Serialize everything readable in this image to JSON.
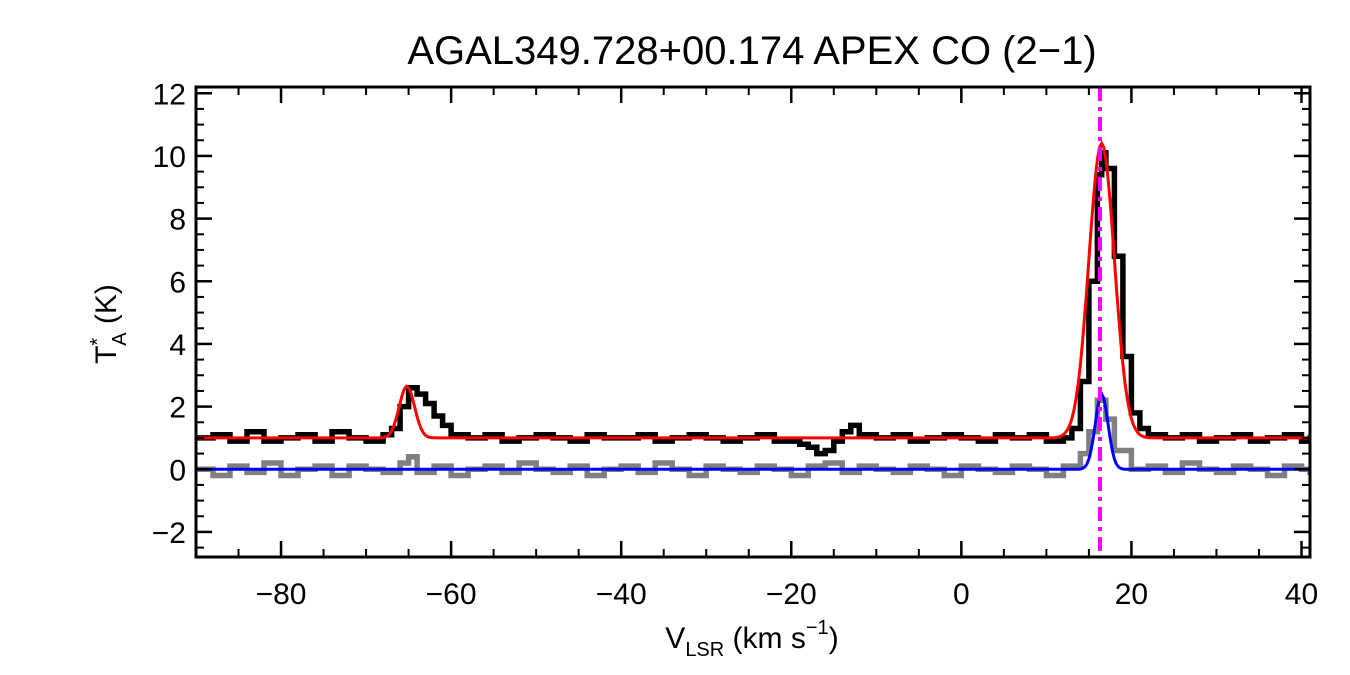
{
  "chart_data": {
    "type": "line",
    "title": "AGAL349.728+00.174  APEX CO (2−1)",
    "xlabel": {
      "main": "V",
      "sub": "LSR",
      "rest": " (km s",
      "sup": "−1",
      "close": ")"
    },
    "ylabel": {
      "main": "T",
      "sup": "*",
      "sub": "A",
      "rest": " (K)"
    },
    "xlim": [
      -90,
      41
    ],
    "ylim": [
      -2.8,
      12.2
    ],
    "xticks": [
      -80,
      -60,
      -40,
      -20,
      0,
      20,
      40
    ],
    "xtick_labels": [
      "−80",
      "−60",
      "−40",
      "−20",
      "0",
      "20",
      "40"
    ],
    "yticks": [
      -2,
      0,
      2,
      4,
      6,
      8,
      10,
      12
    ],
    "ytick_labels": [
      "−2",
      "0",
      "2",
      "4",
      "6",
      "8",
      "10",
      "12"
    ],
    "grid": false,
    "vline": {
      "x": 16.3,
      "color": "#ff00ff",
      "style": "dash-dot"
    },
    "colors": {
      "spectrum": "#000000",
      "residual": "#808080",
      "fit": "#ff0000",
      "fit_component": "#0000ff"
    },
    "series": [
      {
        "role": "spectrum",
        "x": [
          -90,
          -88,
          -86,
          -84,
          -82,
          -80,
          -78,
          -76,
          -74,
          -72,
          -70,
          -68,
          -67,
          -66,
          -65,
          -64,
          -63,
          -62,
          -61,
          -60,
          -58,
          -56,
          -54,
          -52,
          -50,
          -48,
          -46,
          -44,
          -42,
          -40,
          -38,
          -36,
          -34,
          -32,
          -30,
          -28,
          -26,
          -24,
          -22,
          -20,
          -19,
          -18,
          -17,
          -16,
          -15,
          -14,
          -13,
          -12,
          -10,
          -8,
          -6,
          -4,
          -2,
          0,
          2,
          4,
          6,
          8,
          10,
          12,
          13,
          14,
          15,
          16,
          16.5,
          17,
          18,
          19,
          20,
          21,
          22,
          24,
          26,
          28,
          30,
          32,
          34,
          36,
          38,
          40,
          41
        ],
        "y": [
          1.0,
          1.1,
          0.9,
          1.2,
          0.9,
          1.0,
          1.1,
          0.9,
          1.2,
          1.0,
          0.9,
          1.1,
          1.3,
          2.0,
          2.6,
          2.4,
          2.1,
          1.7,
          1.4,
          1.1,
          1.0,
          1.1,
          0.9,
          1.0,
          1.1,
          1.0,
          0.9,
          1.1,
          1.0,
          1.0,
          1.1,
          0.9,
          1.0,
          1.1,
          1.0,
          0.9,
          1.0,
          1.1,
          0.9,
          0.9,
          0.8,
          0.7,
          0.5,
          0.6,
          0.9,
          1.2,
          1.4,
          1.1,
          1.0,
          1.1,
          0.9,
          1.0,
          1.1,
          1.0,
          0.9,
          1.1,
          1.0,
          1.1,
          0.9,
          1.0,
          1.3,
          2.8,
          6.0,
          9.4,
          10.1,
          9.6,
          6.8,
          3.6,
          1.8,
          1.3,
          1.1,
          1.0,
          1.1,
          0.9,
          1.0,
          1.1,
          0.9,
          1.0,
          1.1,
          0.9,
          1.0
        ]
      },
      {
        "role": "residual",
        "x": [
          -90,
          -88,
          -86,
          -84,
          -82,
          -80,
          -78,
          -76,
          -74,
          -72,
          -70,
          -68,
          -66,
          -65,
          -64,
          -62,
          -60,
          -58,
          -56,
          -54,
          -52,
          -50,
          -48,
          -46,
          -44,
          -42,
          -40,
          -38,
          -36,
          -34,
          -32,
          -30,
          -28,
          -26,
          -24,
          -22,
          -20,
          -18,
          -16,
          -14,
          -12,
          -10,
          -8,
          -6,
          -4,
          -2,
          0,
          2,
          4,
          6,
          8,
          10,
          12,
          14,
          15,
          16,
          17,
          18,
          20,
          22,
          24,
          26,
          28,
          30,
          32,
          34,
          36,
          38,
          40,
          41
        ],
        "y": [
          0.0,
          -0.2,
          0.1,
          -0.1,
          0.2,
          -0.2,
          0.0,
          0.1,
          -0.2,
          0.1,
          0.0,
          -0.1,
          0.2,
          0.4,
          -0.1,
          0.1,
          -0.2,
          0.0,
          0.1,
          -0.1,
          0.2,
          0.0,
          -0.1,
          0.1,
          -0.2,
          0.0,
          0.1,
          -0.1,
          0.2,
          0.0,
          -0.2,
          0.1,
          0.0,
          -0.1,
          0.1,
          0.0,
          -0.2,
          0.1,
          0.2,
          -0.1,
          0.1,
          0.0,
          -0.1,
          0.1,
          0.0,
          -0.2,
          0.1,
          0.0,
          -0.1,
          0.1,
          0.0,
          -0.2,
          0.1,
          0.5,
          1.2,
          2.2,
          1.6,
          0.6,
          0.0,
          0.1,
          -0.1,
          0.2,
          0.0,
          -0.1,
          0.1,
          0.0,
          -0.2,
          0.1,
          0.0,
          -0.1
        ]
      },
      {
        "role": "fit",
        "baseline": 1.0,
        "components": [
          {
            "center": -65.2,
            "amplitude": 1.65,
            "sigma": 0.9
          },
          {
            "center": 16.5,
            "amplitude": 9.4,
            "sigma": 1.5
          }
        ]
      },
      {
        "role": "fit_component",
        "baseline": 0.0,
        "components": [
          {
            "center": 16.5,
            "amplitude": 2.4,
            "sigma": 0.75
          }
        ]
      }
    ]
  }
}
